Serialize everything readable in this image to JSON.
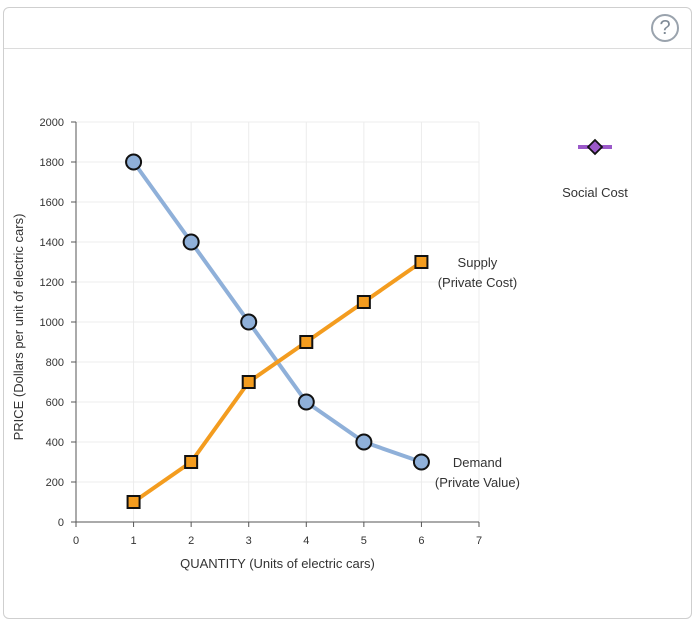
{
  "help": {
    "label": "?"
  },
  "chart_data": {
    "type": "line",
    "xlabel": "QUANTITY (Units of electric cars)",
    "ylabel": "PRICE (Dollars per unit of electric cars)",
    "xlim": [
      0,
      7
    ],
    "ylim": [
      0,
      2000
    ],
    "x_ticks": [
      0,
      1,
      2,
      3,
      4,
      5,
      6,
      7
    ],
    "y_ticks": [
      0,
      200,
      400,
      600,
      800,
      1000,
      1200,
      1400,
      1600,
      1800,
      2000
    ],
    "grid": true,
    "series": [
      {
        "name": "Demand",
        "label_lines": [
          "Demand",
          "(Private Value)"
        ],
        "marker": "circle",
        "line_color": "#8fb0d9",
        "marker_fill": "#8fb0d9",
        "x": [
          1,
          2,
          3,
          4,
          5,
          6
        ],
        "y": [
          1800,
          1400,
          1000,
          600,
          400,
          300
        ]
      },
      {
        "name": "Supply",
        "label_lines": [
          "Supply",
          "(Private Cost)"
        ],
        "marker": "square",
        "line_color": "#f39c1f",
        "marker_fill": "#f39c1f",
        "x": [
          1,
          2,
          3,
          4,
          5,
          6
        ],
        "y": [
          100,
          300,
          700,
          900,
          1100,
          1300
        ]
      }
    ],
    "legend": {
      "entries": [
        {
          "name": "Social Cost",
          "marker": "diamond",
          "line_color": "#9b59c9",
          "marker_fill": "#9b59c9"
        }
      ],
      "position": "top-right"
    }
  }
}
